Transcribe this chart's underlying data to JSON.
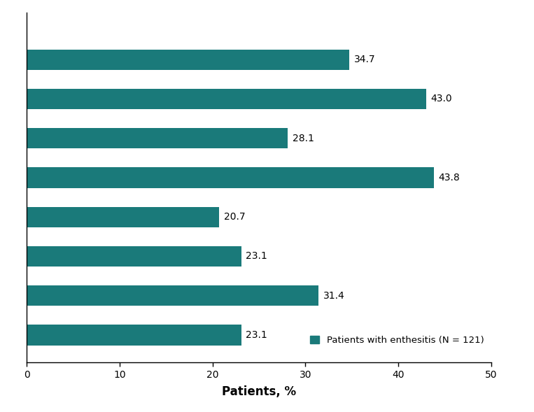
{
  "values": [
    34.7,
    43.0,
    28.1,
    43.8,
    20.7,
    23.1,
    31.4,
    23.1
  ],
  "bar_color": "#1a7a7a",
  "xlabel": "Patients, %",
  "xlim": [
    0,
    50
  ],
  "xticks": [
    0,
    10,
    20,
    30,
    40,
    50
  ],
  "legend_label": "Patients with enthesitis (N = 121)",
  "value_fontsize": 10,
  "xlabel_fontsize": 12,
  "background_color": "#ffffff",
  "bar_height": 0.52,
  "ylim_bottom": -0.7,
  "ylim_top": 8.2
}
